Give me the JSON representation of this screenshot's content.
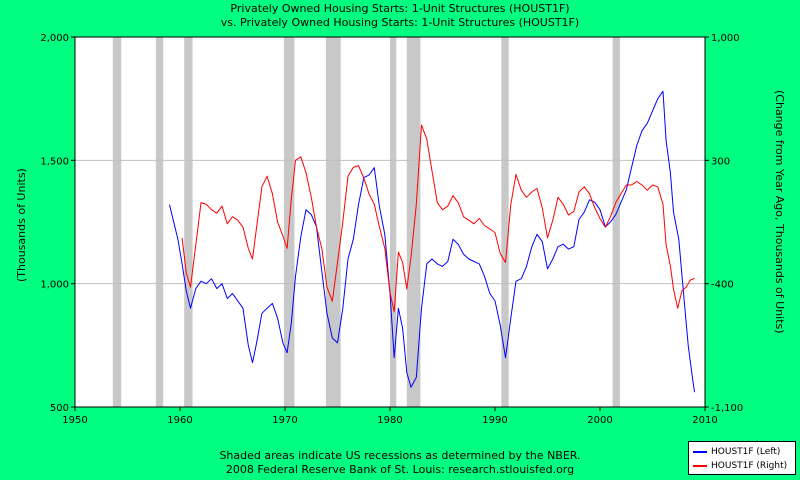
{
  "chart_data": {
    "type": "line",
    "title": "Privately Owned Housing Starts: 1-Unit Structures (HOUST1F)",
    "subtitle": "vs.  Privately Owned Housing Starts: 1-Unit Structures (HOUST1F)",
    "ylabel_left": "(Thousands of Units)",
    "ylabel_right": "(Change from Year Ago, Thousands of Units)",
    "xlim": [
      1950,
      2010
    ],
    "ylim_left": [
      500,
      2000
    ],
    "ylim_right": [
      -1100,
      1000
    ],
    "x_ticks": [
      "1950",
      "1960",
      "1970",
      "1980",
      "1990",
      "2000",
      "2010"
    ],
    "y_ticks_left": [
      "500",
      "1,000",
      "1,500",
      "2,000"
    ],
    "y_ticks_right": [
      "-1,100",
      "-400",
      "300",
      "1,000"
    ],
    "grid": true,
    "legend_position": "bottom-right",
    "recessions": [
      [
        1953.6,
        1954.4
      ],
      [
        1957.7,
        1958.4
      ],
      [
        1960.4,
        1961.2
      ],
      [
        1969.9,
        1970.9
      ],
      [
        1973.9,
        1975.3
      ],
      [
        1980.0,
        1980.6
      ],
      [
        1981.6,
        1982.9
      ],
      [
        1990.6,
        1991.3
      ],
      [
        2001.2,
        2001.9
      ]
    ],
    "series": [
      {
        "name": "HOUST1F (Left)",
        "axis": "left",
        "color": "#0000ff",
        "points": [
          [
            1959.0,
            1320
          ],
          [
            1959.4,
            1250
          ],
          [
            1959.8,
            1180
          ],
          [
            1960.2,
            1080
          ],
          [
            1960.6,
            970
          ],
          [
            1961.0,
            900
          ],
          [
            1961.5,
            980
          ],
          [
            1962.0,
            1010
          ],
          [
            1962.5,
            1000
          ],
          [
            1963.0,
            1020
          ],
          [
            1963.5,
            980
          ],
          [
            1964.0,
            1000
          ],
          [
            1964.5,
            940
          ],
          [
            1965.0,
            960
          ],
          [
            1965.5,
            930
          ],
          [
            1966.0,
            900
          ],
          [
            1966.5,
            750
          ],
          [
            1966.9,
            680
          ],
          [
            1967.3,
            760
          ],
          [
            1967.8,
            880
          ],
          [
            1968.3,
            900
          ],
          [
            1968.8,
            920
          ],
          [
            1969.3,
            860
          ],
          [
            1969.8,
            760
          ],
          [
            1970.2,
            720
          ],
          [
            1970.6,
            840
          ],
          [
            1971.0,
            1030
          ],
          [
            1971.5,
            1190
          ],
          [
            1972.0,
            1300
          ],
          [
            1972.5,
            1280
          ],
          [
            1973.0,
            1230
          ],
          [
            1973.5,
            1050
          ],
          [
            1974.0,
            880
          ],
          [
            1974.5,
            780
          ],
          [
            1975.0,
            760
          ],
          [
            1975.5,
            900
          ],
          [
            1976.0,
            1100
          ],
          [
            1976.5,
            1180
          ],
          [
            1977.0,
            1320
          ],
          [
            1977.5,
            1430
          ],
          [
            1978.0,
            1440
          ],
          [
            1978.5,
            1470
          ],
          [
            1979.0,
            1310
          ],
          [
            1979.5,
            1200
          ],
          [
            1980.0,
            960
          ],
          [
            1980.4,
            700
          ],
          [
            1980.8,
            900
          ],
          [
            1981.2,
            820
          ],
          [
            1981.6,
            640
          ],
          [
            1982.0,
            580
          ],
          [
            1982.5,
            620
          ],
          [
            1983.0,
            900
          ],
          [
            1983.5,
            1080
          ],
          [
            1984.0,
            1100
          ],
          [
            1984.5,
            1080
          ],
          [
            1985.0,
            1070
          ],
          [
            1985.5,
            1090
          ],
          [
            1986.0,
            1180
          ],
          [
            1986.5,
            1160
          ],
          [
            1987.0,
            1120
          ],
          [
            1987.5,
            1100
          ],
          [
            1988.0,
            1090
          ],
          [
            1988.5,
            1080
          ],
          [
            1989.0,
            1030
          ],
          [
            1989.5,
            960
          ],
          [
            1990.0,
            930
          ],
          [
            1990.5,
            830
          ],
          [
            1991.0,
            700
          ],
          [
            1991.5,
            860
          ],
          [
            1992.0,
            1010
          ],
          [
            1992.5,
            1020
          ],
          [
            1993.0,
            1070
          ],
          [
            1993.5,
            1150
          ],
          [
            1994.0,
            1200
          ],
          [
            1994.5,
            1170
          ],
          [
            1995.0,
            1060
          ],
          [
            1995.5,
            1100
          ],
          [
            1996.0,
            1150
          ],
          [
            1996.5,
            1160
          ],
          [
            1997.0,
            1140
          ],
          [
            1997.5,
            1150
          ],
          [
            1998.0,
            1260
          ],
          [
            1998.5,
            1290
          ],
          [
            1999.0,
            1340
          ],
          [
            1999.5,
            1330
          ],
          [
            2000.0,
            1300
          ],
          [
            2000.5,
            1230
          ],
          [
            2001.0,
            1250
          ],
          [
            2001.5,
            1280
          ],
          [
            2002.0,
            1330
          ],
          [
            2002.5,
            1380
          ],
          [
            2003.0,
            1470
          ],
          [
            2003.5,
            1560
          ],
          [
            2004.0,
            1620
          ],
          [
            2004.5,
            1650
          ],
          [
            2005.0,
            1700
          ],
          [
            2005.5,
            1750
          ],
          [
            2006.0,
            1780
          ],
          [
            2006.3,
            1580
          ],
          [
            2006.7,
            1450
          ],
          [
            2007.0,
            1290
          ],
          [
            2007.5,
            1180
          ],
          [
            2008.0,
            940
          ],
          [
            2008.4,
            750
          ],
          [
            2008.8,
            620
          ],
          [
            2009.0,
            560
          ]
        ]
      },
      {
        "name": "HOUST1F (Right)",
        "axis": "right",
        "color": "#ff0000",
        "points": [
          [
            1960.2,
            -140
          ],
          [
            1960.6,
            -340
          ],
          [
            1961.0,
            -420
          ],
          [
            1961.5,
            -180
          ],
          [
            1962.0,
            60
          ],
          [
            1962.5,
            50
          ],
          [
            1963.0,
            20
          ],
          [
            1963.5,
            0
          ],
          [
            1964.0,
            40
          ],
          [
            1964.5,
            -60
          ],
          [
            1965.0,
            -20
          ],
          [
            1965.5,
            -40
          ],
          [
            1966.0,
            -80
          ],
          [
            1966.5,
            -200
          ],
          [
            1966.9,
            -260
          ],
          [
            1967.3,
            -80
          ],
          [
            1967.8,
            150
          ],
          [
            1968.3,
            210
          ],
          [
            1968.8,
            110
          ],
          [
            1969.3,
            -50
          ],
          [
            1969.8,
            -130
          ],
          [
            1970.2,
            -200
          ],
          [
            1970.6,
            80
          ],
          [
            1971.0,
            300
          ],
          [
            1971.5,
            320
          ],
          [
            1972.0,
            230
          ],
          [
            1972.5,
            90
          ],
          [
            1973.0,
            -80
          ],
          [
            1973.5,
            -200
          ],
          [
            1974.0,
            -420
          ],
          [
            1974.5,
            -500
          ],
          [
            1975.0,
            -280
          ],
          [
            1975.5,
            -50
          ],
          [
            1976.0,
            210
          ],
          [
            1976.5,
            260
          ],
          [
            1977.0,
            270
          ],
          [
            1977.5,
            200
          ],
          [
            1978.0,
            110
          ],
          [
            1978.5,
            50
          ],
          [
            1979.0,
            -80
          ],
          [
            1979.5,
            -200
          ],
          [
            1980.0,
            -450
          ],
          [
            1980.4,
            -560
          ],
          [
            1980.8,
            -220
          ],
          [
            1981.2,
            -280
          ],
          [
            1981.6,
            -430
          ],
          [
            1982.0,
            -250
          ],
          [
            1982.5,
            50
          ],
          [
            1983.0,
            500
          ],
          [
            1983.5,
            420
          ],
          [
            1984.0,
            240
          ],
          [
            1984.5,
            60
          ],
          [
            1985.0,
            20
          ],
          [
            1985.5,
            40
          ],
          [
            1986.0,
            100
          ],
          [
            1986.5,
            60
          ],
          [
            1987.0,
            -20
          ],
          [
            1987.5,
            -40
          ],
          [
            1988.0,
            -60
          ],
          [
            1988.5,
            -30
          ],
          [
            1989.0,
            -70
          ],
          [
            1989.5,
            -90
          ],
          [
            1990.0,
            -110
          ],
          [
            1990.5,
            -230
          ],
          [
            1991.0,
            -280
          ],
          [
            1991.5,
            50
          ],
          [
            1992.0,
            220
          ],
          [
            1992.5,
            130
          ],
          [
            1993.0,
            90
          ],
          [
            1993.5,
            120
          ],
          [
            1994.0,
            140
          ],
          [
            1994.5,
            30
          ],
          [
            1995.0,
            -140
          ],
          [
            1995.5,
            -40
          ],
          [
            1996.0,
            90
          ],
          [
            1996.5,
            50
          ],
          [
            1997.0,
            -10
          ],
          [
            1997.5,
            10
          ],
          [
            1998.0,
            120
          ],
          [
            1998.5,
            150
          ],
          [
            1999.0,
            110
          ],
          [
            1999.5,
            30
          ],
          [
            2000.0,
            -30
          ],
          [
            2000.5,
            -80
          ],
          [
            2001.0,
            -20
          ],
          [
            2001.5,
            60
          ],
          [
            2002.0,
            110
          ],
          [
            2002.5,
            160
          ],
          [
            2003.0,
            160
          ],
          [
            2003.5,
            180
          ],
          [
            2004.0,
            160
          ],
          [
            2004.5,
            130
          ],
          [
            2005.0,
            160
          ],
          [
            2005.5,
            150
          ],
          [
            2006.0,
            50
          ],
          [
            2006.3,
            -180
          ],
          [
            2006.7,
            -300
          ],
          [
            2007.0,
            -430
          ],
          [
            2007.4,
            -540
          ],
          [
            2007.8,
            -440
          ],
          [
            2008.2,
            -420
          ],
          [
            2008.6,
            -380
          ],
          [
            2009.0,
            -370
          ]
        ]
      }
    ]
  },
  "footer": {
    "line1": "Shaded areas indicate US recessions as determined by the NBER.",
    "line2": "2008 Federal Reserve Bank of St. Louis: research.stlouisfed.org"
  },
  "legend": {
    "items": [
      {
        "label": "HOUST1F (Left)",
        "color": "#0000ff"
      },
      {
        "label": "HOUST1F (Right)",
        "color": "#ff0000"
      }
    ]
  },
  "colors": {
    "background": "#00ff80",
    "plot_area": "#ffffff",
    "recession_shade": "#c8c8c8",
    "grid": "#c0c0c0"
  }
}
